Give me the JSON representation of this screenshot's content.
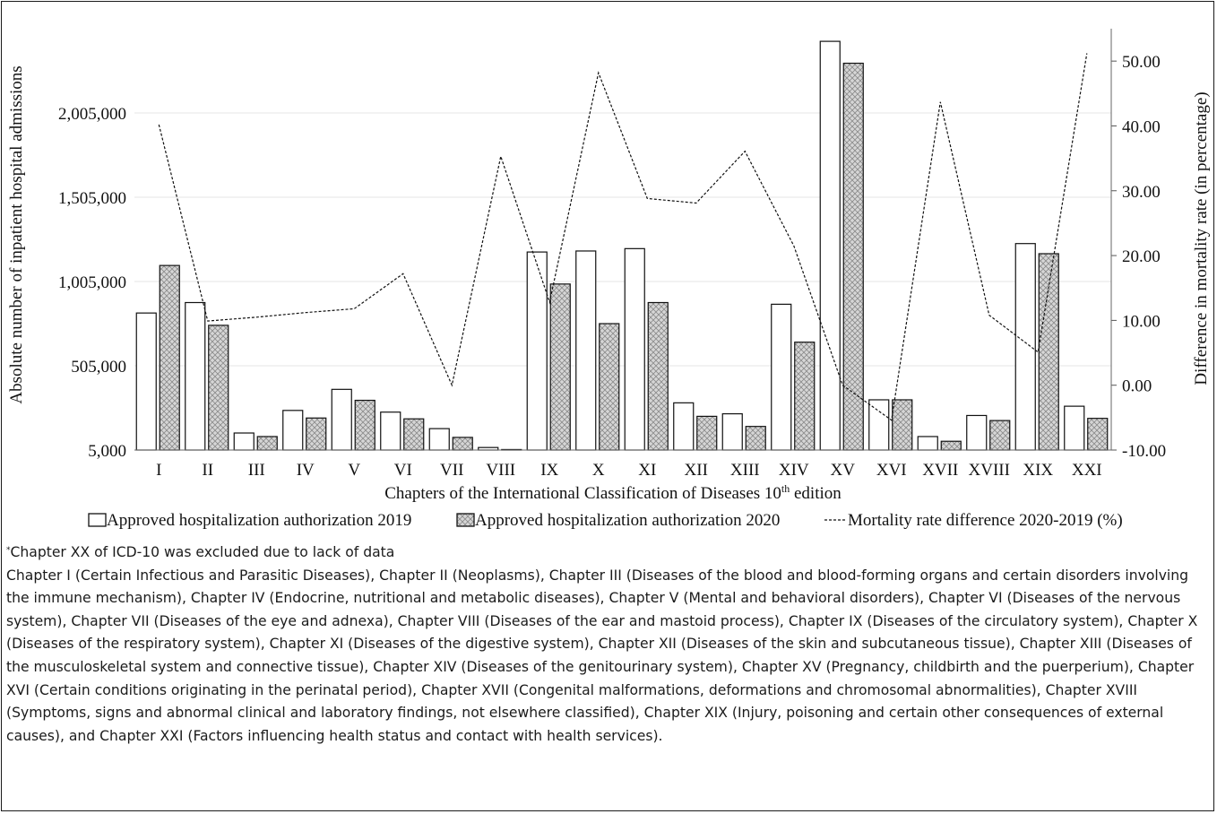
{
  "chart_data": {
    "type": "bar",
    "categories": [
      "I",
      "II",
      "III",
      "IV",
      "V",
      "VI",
      "VII",
      "VIII",
      "IX",
      "X",
      "XI",
      "XII",
      "XIII",
      "XIV",
      "XV",
      "XVI",
      "XVII",
      "XVIII",
      "XIX",
      "XXI"
    ],
    "series": [
      {
        "name": "Approved hospitalization authorization 2019",
        "axis": "left",
        "kind": "bar",
        "values": [
          818000,
          880000,
          106000,
          240000,
          365000,
          230000,
          132000,
          20000,
          1180000,
          1186000,
          1200000,
          285000,
          220000,
          870000,
          2430000,
          303000,
          85000,
          210000,
          1230000,
          265000
        ]
      },
      {
        "name": "Approved hospitalization authorization 2020",
        "axis": "left",
        "kind": "bar",
        "values": [
          1100000,
          745000,
          85000,
          195000,
          300000,
          190000,
          80000,
          8000,
          990000,
          755000,
          880000,
          205000,
          145000,
          645000,
          2300000,
          303000,
          57000,
          180000,
          1170000,
          193000
        ]
      },
      {
        "name": "Mortality rate difference 2020-2019 (%)",
        "axis": "right",
        "kind": "line",
        "values": [
          40.2,
          9.9,
          10.5,
          11.2,
          11.8,
          17.2,
          0.0,
          35.3,
          12.8,
          48.2,
          28.8,
          28.1,
          36.1,
          21.5,
          0.0,
          -5.4,
          43.7,
          10.8,
          5.1,
          51.2
        ]
      }
    ],
    "title": "",
    "xlabel": "Chapters of the International Classification of Diseases 10",
    "xlabel_sup": "th",
    "xlabel_suffix": " edition",
    "ylabel": "Absolute number of inpatient hospital admissions",
    "y2label": "Difference in mortality rate (in percentage)",
    "ylim": [
      5000,
      2505000
    ],
    "yticks": [
      5000,
      505000,
      1005000,
      1505000,
      2005000
    ],
    "ytick_labels": [
      "5,000",
      "505,000",
      "1,005,000",
      "1,505,000",
      "2,005,000"
    ],
    "y2lim": [
      -10,
      55
    ],
    "y2ticks": [
      -10,
      0,
      10,
      20,
      30,
      40,
      50
    ],
    "y2tick_labels": [
      "-10.00",
      "0.00",
      "10.00",
      "20.00",
      "30.00",
      "40.00",
      "50.00"
    ],
    "grid": true,
    "legend_position": "bottom",
    "colors": {
      "bar2019": "#ffffff",
      "bar2020": "#d4d4d4",
      "line": "#111111",
      "grid": "#e6e6e6"
    }
  },
  "notes": {
    "footnote_mark": "*",
    "footnote": "Chapter XX of ICD-10 was excluded due to lack of data",
    "description": "Chapter I (Certain Infectious and Parasitic Diseases), Chapter II (Neoplasms), Chapter III (Diseases of the blood and blood-forming organs and certain disorders involving the immune mechanism), Chapter IV (Endocrine, nutritional and metabolic diseases), Chapter V (Mental and behavioral disorders), Chapter VI (Diseases of the nervous system), Chapter VII (Diseases of the eye and adnexa), Chapter VIII (Diseases of the ear and mastoid process), Chapter IX (Diseases of the circulatory system), Chapter X (Diseases of the respiratory system), Chapter XI (Diseases of the digestive system), Chapter XII (Diseases of the skin and subcutaneous tissue), Chapter XIII (Diseases of the musculoskeletal system and connective tissue), Chapter XIV (Diseases of the genitourinary system), Chapter XV (Pregnancy, childbirth and the puerperium), Chapter XVI (Certain conditions originating in the perinatal period), Chapter XVII (Congenital malformations, deformations and chromosomal abnormalities), Chapter XVIII (Symptoms, signs and abnormal clinical and laboratory findings, not elsewhere classified), Chapter XIX (Injury, poisoning and certain other consequences of external causes), and Chapter XXI (Factors influencing health status and contact with health services)."
  }
}
